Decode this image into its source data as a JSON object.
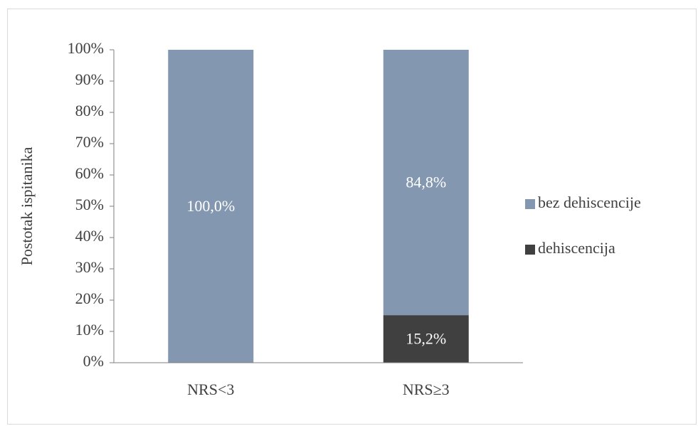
{
  "chart_data": {
    "type": "stacked_bar",
    "y_label": "Postotak ispitanika",
    "categories": [
      "NRS<3",
      "NRS≥3"
    ],
    "series": [
      {
        "name": "dehiscencija",
        "color": "#404040",
        "values": [
          0,
          15.2
        ],
        "value_labels": [
          null,
          "15,2%"
        ]
      },
      {
        "name": "bez dehiscencije",
        "color": "#8497b0",
        "values": [
          100,
          84.8
        ],
        "value_labels": [
          "100,0%",
          "84,8%"
        ]
      }
    ],
    "ylim": [
      0,
      100
    ],
    "yticks": [
      {
        "value": 0,
        "label": "0%"
      },
      {
        "value": 10,
        "label": "10%"
      },
      {
        "value": 20,
        "label": "20%"
      },
      {
        "value": 30,
        "label": "30%"
      },
      {
        "value": 40,
        "label": "40%"
      },
      {
        "value": 50,
        "label": "50%"
      },
      {
        "value": 60,
        "label": "60%"
      },
      {
        "value": 70,
        "label": "70%"
      },
      {
        "value": 80,
        "label": "80%"
      },
      {
        "value": 90,
        "label": "90%"
      },
      {
        "value": 100,
        "label": "100%"
      }
    ],
    "legend": "right",
    "grid": false
  }
}
